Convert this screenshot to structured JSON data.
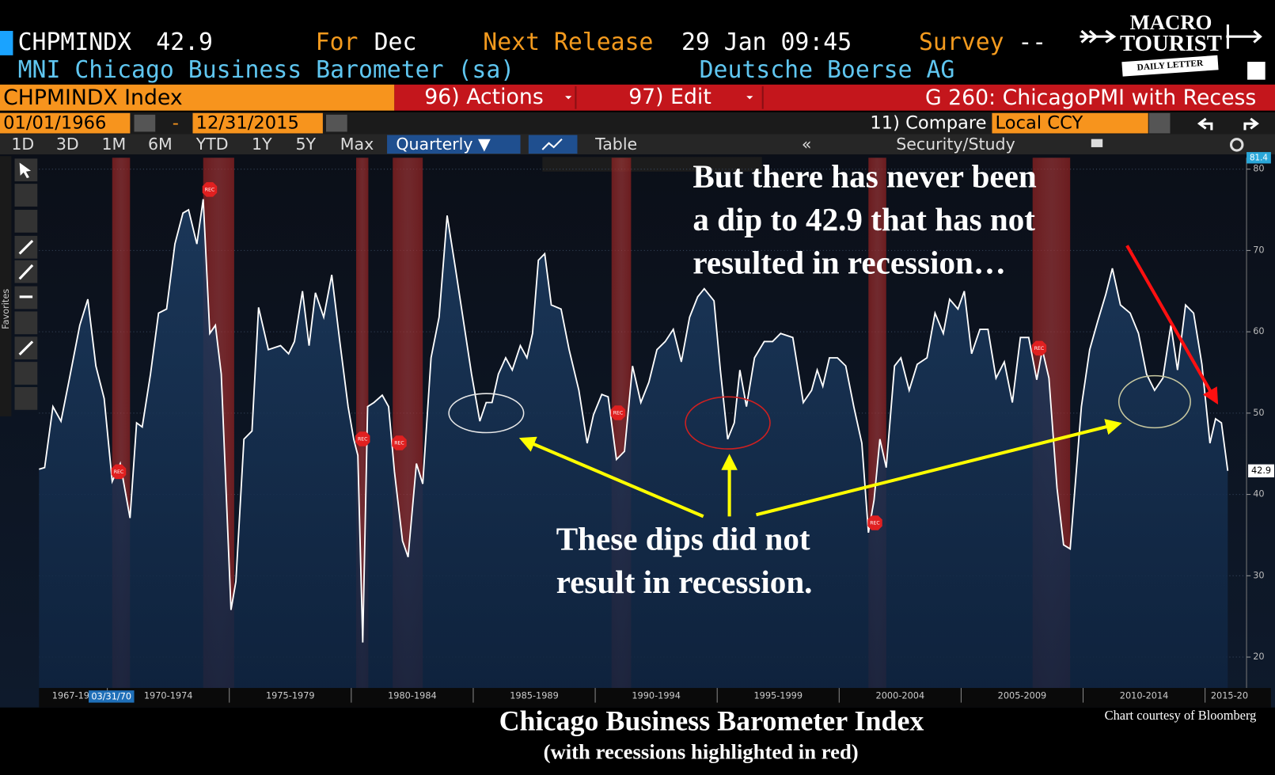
{
  "header": {
    "ticker": "CHPMINDX",
    "last": 42.9,
    "for_label": "For",
    "period": "Dec",
    "next_release_label": "Next Release",
    "release_time": "29 Jan 09:45",
    "survey_label": "Survey",
    "survey": "--",
    "name": "MNI Chicago Business Barometer (sa)",
    "source": "Deutsche Boerse AG"
  },
  "logo": {
    "line1": "MACRO",
    "line2": "TOURIST",
    "tagline": "DAILY LETTER"
  },
  "toolbar": {
    "security": "CHPMINDX Index",
    "actions": "96) Actions",
    "edit": "97) Edit",
    "chart_name": "G 260: ChicagoPMI with Recess",
    "start_date": "01/01/1966",
    "date_separator": "-",
    "end_date": "12/31/2015",
    "compare": "11) Compare",
    "currency": "Local CCY",
    "ranges": [
      "1D",
      "3D",
      "1M",
      "6M",
      "YTD",
      "1Y",
      "5Y",
      "Max"
    ],
    "frequency": "Quarterly ▼",
    "table": "Table",
    "study": "Security/Study",
    "chart_tools": [
      "Track",
      "Annotate",
      "News",
      "Zoom"
    ],
    "favorites": "Favorites"
  },
  "chart_data": {
    "type": "line",
    "title": "Chicago Business Barometer Index",
    "subtitle": "(with recessions highlighted in red)",
    "credit": "Chart courtesy of Bloomberg",
    "x": [
      1967.2,
      1967.43,
      1967.77,
      1968.1,
      1968.43,
      1968.87,
      1969.2,
      1969.53,
      1969.87,
      1970.2,
      1970.53,
      1970.93,
      1971.2,
      1971.43,
      1971.77,
      1972.1,
      1972.43,
      1972.77,
      1973.1,
      1973.33,
      1973.67,
      1973.93,
      1974.2,
      1974.43,
      1974.67,
      1975.07,
      1975.27,
      1975.6,
      1975.93,
      1976.2,
      1976.6,
      1977.1,
      1977.43,
      1977.67,
      1978.0,
      1978.27,
      1978.53,
      1978.87,
      1979.2,
      1979.53,
      1979.87,
      1980.1,
      1980.27,
      1980.47,
      1980.67,
      1980.93,
      1981.27,
      1981.53,
      1981.77,
      1982.1,
      1982.33,
      1982.67,
      1982.93,
      1983.27,
      1983.6,
      1983.93,
      1984.27,
      1984.6,
      1984.93,
      1985.27,
      1985.53,
      1985.77,
      1986.03,
      1986.33,
      1986.6,
      1986.93,
      1987.2,
      1987.43,
      1987.67,
      1987.93,
      1988.2,
      1988.6,
      1988.93,
      1989.33,
      1989.67,
      1989.93,
      1990.27,
      1990.53,
      1990.87,
      1991.2,
      1991.53,
      1991.87,
      1992.2,
      1992.53,
      1992.87,
      1993.2,
      1993.53,
      1993.87,
      1994.2,
      1994.47,
      1994.87,
      1995.13,
      1995.43,
      1995.7,
      1995.93,
      1996.2,
      1996.53,
      1996.93,
      1997.27,
      1997.6,
      1998.1,
      1998.53,
      1998.87,
      1999.1,
      1999.33,
      1999.6,
      1999.93,
      2000.27,
      2000.6,
      2000.93,
      2001.2,
      2001.43,
      2001.67,
      2001.93,
      2002.27,
      2002.53,
      2002.87,
      2003.2,
      2003.6,
      2003.93,
      2004.27,
      2004.53,
      2004.87,
      2005.13,
      2005.43,
      2005.77,
      2006.1,
      2006.43,
      2006.77,
      2007.1,
      2007.43,
      2007.77,
      2008.1,
      2008.33,
      2008.6,
      2008.93,
      2009.2,
      2009.47,
      2009.93,
      2010.27,
      2010.6,
      2010.93,
      2011.2,
      2011.53,
      2011.93,
      2012.27,
      2012.6,
      2012.93,
      2013.27,
      2013.6,
      2013.87,
      2014.2,
      2014.53,
      2014.87,
      2015.2,
      2015.43,
      2015.67,
      2015.93
    ],
    "series": [
      {
        "name": "CHPMINDX",
        "color": "#ffffff",
        "values": [
          43.1,
          43.3,
          50.8,
          49,
          54,
          60.8,
          64,
          55.8,
          51.8,
          41.6,
          43.8,
          37.1,
          48.8,
          48.3,
          54.8,
          62.3,
          62.8,
          70.8,
          74.6,
          75,
          70.8,
          76.3,
          59.8,
          60.8,
          54.8,
          25.8,
          29.3,
          46.8,
          47.8,
          63,
          57.8,
          58.3,
          57.3,
          58.8,
          65,
          58.3,
          64.8,
          61.8,
          67,
          58.8,
          50.8,
          46.8,
          44.8,
          21.8,
          50.8,
          51.3,
          52.2,
          50.8,
          42.8,
          34.3,
          32.3,
          43.8,
          41.3,
          56.8,
          61.8,
          74.3,
          67.8,
          61.3,
          54.8,
          49,
          51.3,
          51.3,
          54.8,
          56.8,
          55.3,
          58.3,
          56.8,
          59.8,
          68.8,
          69.6,
          63.3,
          62.8,
          57.8,
          52.8,
          46.3,
          49.8,
          52.3,
          52,
          44.3,
          45.3,
          55.8,
          51.3,
          53.8,
          57.8,
          58.8,
          60.3,
          56.3,
          61.8,
          64.3,
          65.3,
          63.8,
          55.3,
          46.8,
          48.8,
          55.3,
          50.8,
          56.8,
          58.8,
          58.8,
          59.8,
          59.3,
          51.3,
          52.8,
          55.3,
          53.3,
          56.8,
          56.8,
          55.8,
          50.8,
          46.3,
          35.3,
          39.3,
          46.8,
          43.3,
          55.8,
          56.8,
          52.8,
          56,
          56.8,
          62.3,
          59.8,
          64,
          62.8,
          65,
          57.3,
          60.3,
          60.3,
          54.3,
          56.3,
          51.3,
          59.3,
          59.3,
          54.1,
          57.8,
          54.3,
          40.8,
          33.8,
          33.3,
          50.8,
          57.8,
          61.3,
          64.6,
          67.8,
          63.3,
          62.3,
          59.8,
          54.8,
          52.8,
          54.3,
          60.8,
          55.3,
          63.3,
          62.3,
          56,
          46.3,
          49.3,
          48.8,
          42.9
        ]
      }
    ],
    "recessions": [
      [
        1970.2,
        1970.93
      ],
      [
        1973.93,
        1975.2
      ],
      [
        1980.2,
        1980.7
      ],
      [
        1981.7,
        1982.93
      ],
      [
        1990.67,
        1991.47
      ],
      [
        2001.2,
        2001.93
      ],
      [
        2007.93,
        2009.47
      ]
    ],
    "recession_marker": "REC",
    "xlim": [
      1967.2,
      2016.7
    ],
    "xticks": [
      {
        "value": 1968.5,
        "label": "1967-19"
      },
      {
        "value": 1972.5,
        "label": "1970-1974"
      },
      {
        "value": 1977.5,
        "label": "1975-1979"
      },
      {
        "value": 1982.5,
        "label": "1980-1984"
      },
      {
        "value": 1987.5,
        "label": "1985-1989"
      },
      {
        "value": 1992.5,
        "label": "1990-1994"
      },
      {
        "value": 1997.5,
        "label": "1995-1999"
      },
      {
        "value": 2002.5,
        "label": "2000-2004"
      },
      {
        "value": 2007.5,
        "label": "2005-2009"
      },
      {
        "value": 2012.5,
        "label": "2010-2014"
      },
      {
        "value": 2016,
        "label": "2015-20"
      }
    ],
    "x_group_edges": [
      1970,
      1975,
      1980,
      1985,
      1990,
      1995,
      2000,
      2005,
      2010,
      2015
    ],
    "cursor_label": "03/31/70",
    "ylim": [
      16.2,
      81.4
    ],
    "yticks": [
      20,
      30,
      40,
      50,
      60,
      70,
      80
    ],
    "grid": true,
    "annotations": {
      "top": [
        "But there has never been",
        "a dip to 42.9 that has not",
        "resulted in recession…"
      ],
      "bottom": [
        "These dips did not",
        "result in recession."
      ]
    }
  }
}
